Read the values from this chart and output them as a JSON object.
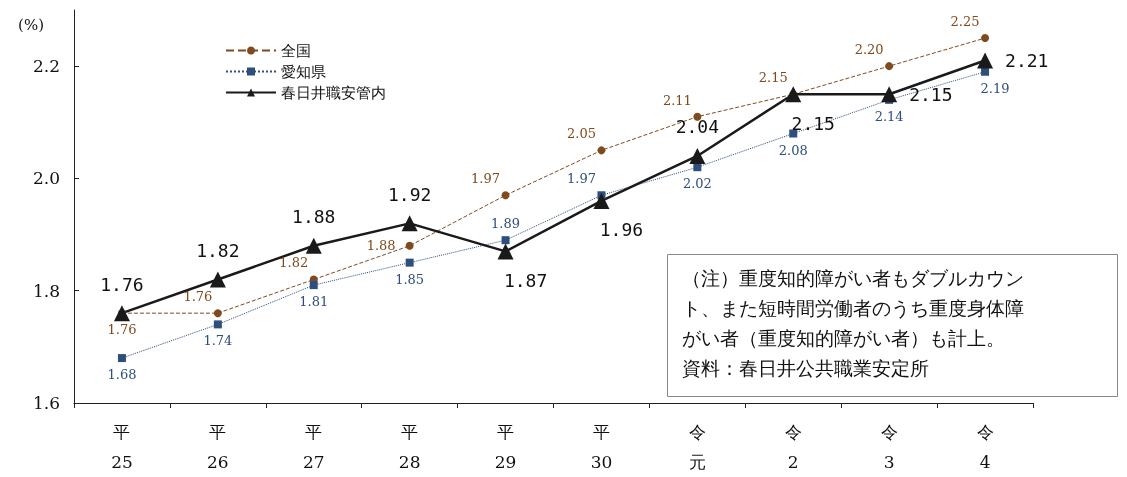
{
  "chart_data": {
    "type": "line",
    "ylabel": "(%)",
    "categories": [
      "平25",
      "平26",
      "平27",
      "平28",
      "平29",
      "平30",
      "令元",
      "令2",
      "令3",
      "令4"
    ],
    "series": [
      {
        "name": "全国",
        "color": "#7f4a1e",
        "marker": "circle",
        "line_style": "dashed",
        "values": [
          1.76,
          1.76,
          1.82,
          1.88,
          1.97,
          2.05,
          2.11,
          2.15,
          2.2,
          2.25
        ],
        "value_labels": [
          "1.76",
          "1.76",
          "1.82",
          "1.88",
          "1.97",
          "2.05",
          "2.11",
          "2.15",
          "2.20",
          "2.25"
        ]
      },
      {
        "name": "愛知県",
        "color": "#2e4e7e",
        "marker": "square",
        "line_style": "dotted",
        "values": [
          1.68,
          1.74,
          1.81,
          1.85,
          1.89,
          1.97,
          2.02,
          2.08,
          2.14,
          2.19
        ],
        "value_labels": [
          "1.68",
          "1.74",
          "1.81",
          "1.85",
          "1.89",
          "1.97",
          "2.02",
          "2.08",
          "2.14",
          "2.19"
        ]
      },
      {
        "name": "春日井職安管内",
        "color": "#1a1a1a",
        "marker": "triangle",
        "line_style": "solid",
        "values": [
          1.76,
          1.82,
          1.88,
          1.92,
          1.87,
          1.96,
          2.04,
          2.15,
          2.15,
          2.21
        ],
        "value_labels": [
          "1.76",
          "1.82",
          "1.88",
          "1.92",
          "1.87",
          "1.96",
          "2.04",
          "2.15",
          "2.15",
          "2.21"
        ]
      }
    ],
    "ylim": [
      1.6,
      2.3
    ],
    "yticks": [
      1.6,
      1.8,
      {
        "value": 2.0,
        "label": "2.0"
      },
      2.2
    ],
    "grid": false,
    "legend": "top left",
    "annotations": [
      "（注）重度知的障がい者もダブルカウント、また短時間労働者のうち重度身体障がい者（重度知的障がい者）も計上。",
      "資料：春日井公共職業安定所"
    ]
  }
}
